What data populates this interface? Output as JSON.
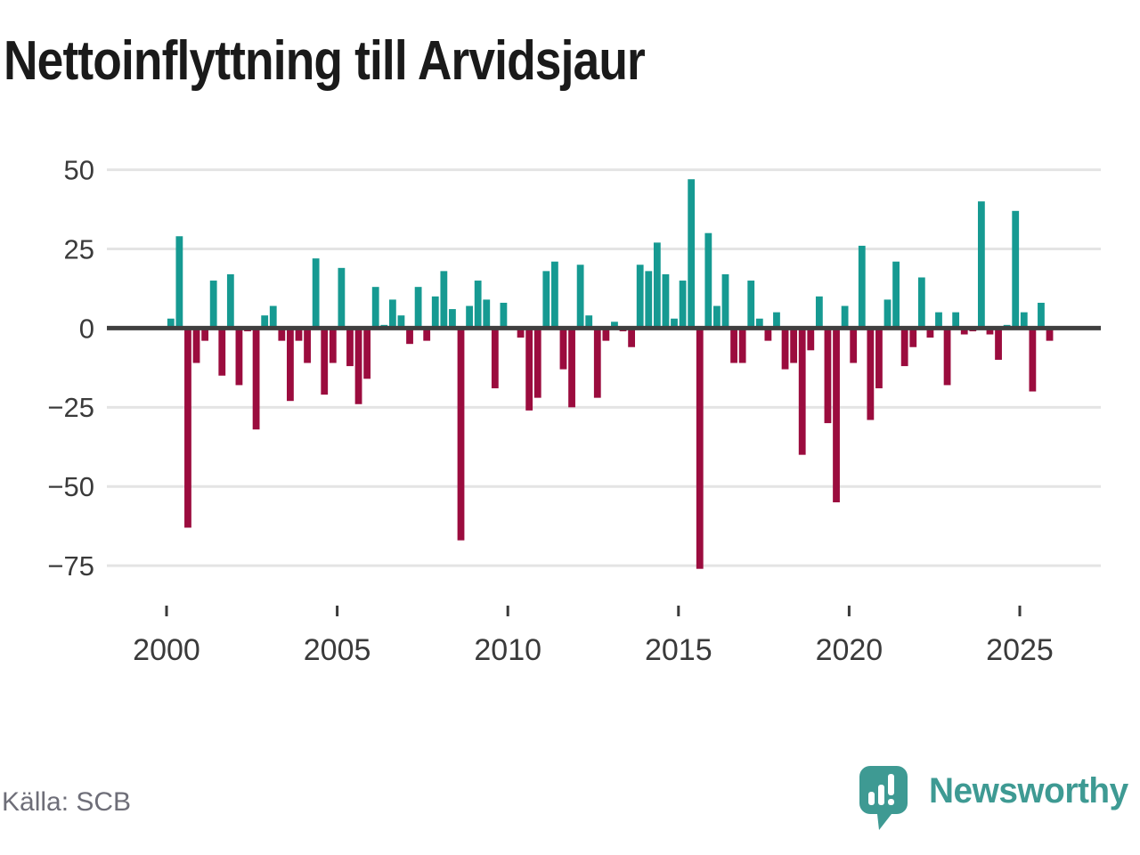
{
  "title": "Nettoinflyttning till Arvidsjaur",
  "footer": {
    "source": "Källa: SCB",
    "brand": "Newsworthy"
  },
  "brand_color": "#3e9a93",
  "chart_data": {
    "type": "bar",
    "title": "Nettoinflyttning till Arvidsjaur",
    "frequency": "quarterly",
    "start_period": "2000 Q1",
    "end_period": "2025 Q4",
    "grid": "horizontal",
    "legend": "none",
    "y_ticks": [
      50,
      25,
      0,
      -25,
      -50,
      -75
    ],
    "ylim": [
      -80,
      52
    ],
    "x_tick_years": [
      2000,
      2005,
      2010,
      2015,
      2020,
      2025
    ],
    "colors": {
      "positive": "#169a92",
      "negative": "#9b0c3e",
      "axis": "#3f3f3f",
      "gridline": "#e4e4e4",
      "tick_text": "#3a3a3a"
    },
    "values": [
      3,
      29,
      -63,
      -11,
      -4,
      15,
      -15,
      17,
      -18,
      -1,
      -32,
      4,
      7,
      -4,
      -23,
      -4,
      -11,
      22,
      -21,
      -11,
      19,
      -12,
      -24,
      -16,
      13,
      1,
      9,
      4,
      -5,
      13,
      -4,
      10,
      18,
      6,
      -67,
      7,
      15,
      9,
      -19,
      8,
      0,
      -3,
      -26,
      -22,
      18,
      21,
      -13,
      -25,
      20,
      4,
      -22,
      -4,
      2,
      -1,
      -6,
      20,
      18,
      27,
      17,
      3,
      15,
      47,
      -76,
      30,
      7,
      17,
      -11,
      -11,
      15,
      3,
      -4,
      5,
      -13,
      -11,
      -40,
      -7,
      10,
      -30,
      -55,
      7,
      -11,
      26,
      -29,
      -19,
      9,
      21,
      -12,
      -6,
      16,
      -3,
      5,
      -18,
      5,
      -2,
      -1,
      40,
      -2,
      -10,
      1,
      37,
      5,
      -20,
      8,
      -4
    ]
  }
}
